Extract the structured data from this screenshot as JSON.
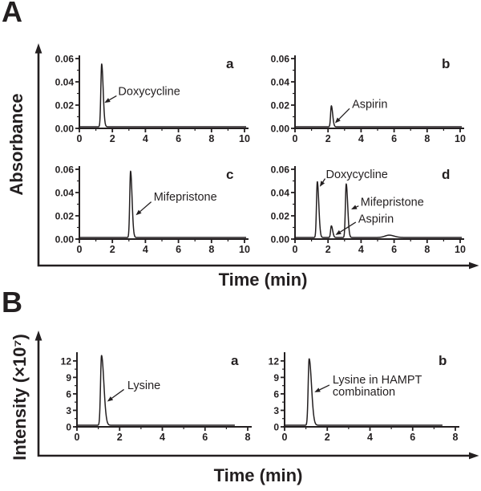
{
  "figure": {
    "ink": "#231f20",
    "background": "#ffffff",
    "panel_a": {
      "label": "A",
      "ylabel": "Absorbance",
      "xlabel": "Time (min)"
    },
    "panel_b": {
      "label": "B",
      "ylabel": "Intensity (×10⁷)",
      "xlabel": "Time (min)"
    }
  },
  "chart_data": [
    {
      "id": "A-a",
      "type": "line",
      "panel": "A",
      "letter": "a",
      "xlim": [
        0,
        10
      ],
      "ylim": [
        0,
        0.06
      ],
      "xtick_values": [
        0,
        2,
        4,
        6,
        8,
        10
      ],
      "xtick_labels": [
        "0",
        "2",
        "4",
        "6",
        "8",
        "10"
      ],
      "xminor": [
        1,
        3,
        5,
        7,
        9
      ],
      "ytick_values": [
        0,
        0.02,
        0.04,
        0.06
      ],
      "ytick_labels": [
        "0.00",
        "0.02",
        "0.04",
        "0.06"
      ],
      "yminor": [
        0.01,
        0.03,
        0.05
      ],
      "trace_end": 10.1,
      "peaks": [
        {
          "name": "Doxycycline",
          "t": 1.35,
          "h": 0.054,
          "sl": 0.05,
          "sr": 0.09
        }
      ],
      "annotations": [
        {
          "lines": [
            "Doxycycline"
          ],
          "tx": 2.35,
          "ty": 0.032,
          "arrow": {
            "x1": 2.25,
            "y1": 0.028,
            "x2": 1.52,
            "y2": 0.022
          }
        }
      ]
    },
    {
      "id": "A-b",
      "type": "line",
      "panel": "A",
      "letter": "b",
      "xlim": [
        0,
        10
      ],
      "ylim": [
        0,
        0.06
      ],
      "xtick_values": [
        0,
        2,
        4,
        6,
        8,
        10
      ],
      "xtick_labels": [
        "0",
        "2",
        "4",
        "6",
        "8",
        "10"
      ],
      "xminor": [
        1,
        3,
        5,
        7,
        9
      ],
      "ytick_values": [
        0,
        0.02,
        0.04,
        0.06
      ],
      "ytick_labels": [
        "0.00",
        "0.02",
        "0.04",
        "0.06"
      ],
      "yminor": [
        0.01,
        0.03,
        0.05
      ],
      "trace_end": 10.1,
      "peaks": [
        {
          "name": "Aspirin",
          "t": 2.2,
          "h": 0.018,
          "sl": 0.045,
          "sr": 0.08
        }
      ],
      "annotations": [
        {
          "lines": [
            "Aspirin"
          ],
          "tx": 3.45,
          "ty": 0.021,
          "arrow": {
            "x1": 3.3,
            "y1": 0.017,
            "x2": 2.42,
            "y2": 0.0045
          }
        }
      ]
    },
    {
      "id": "A-c",
      "type": "line",
      "panel": "A",
      "letter": "c",
      "xlim": [
        0,
        10
      ],
      "ylim": [
        0,
        0.06
      ],
      "xtick_values": [
        0,
        2,
        4,
        6,
        8,
        10
      ],
      "xtick_labels": [
        "0",
        "2",
        "4",
        "6",
        "8",
        "10"
      ],
      "xminor": [
        1,
        3,
        5,
        7,
        9
      ],
      "ytick_values": [
        0,
        0.02,
        0.04,
        0.06
      ],
      "ytick_labels": [
        "0.00",
        "0.02",
        "0.04",
        "0.06"
      ],
      "yminor": [
        0.01,
        0.03,
        0.05
      ],
      "trace_end": 10.1,
      "peaks": [
        {
          "name": "Mifepristone",
          "t": 3.1,
          "h": 0.057,
          "sl": 0.05,
          "sr": 0.09
        }
      ],
      "annotations": [
        {
          "lines": [
            "Mifepristone"
          ],
          "tx": 4.5,
          "ty": 0.0365,
          "arrow": {
            "x1": 4.35,
            "y1": 0.032,
            "x2": 3.42,
            "y2": 0.0205
          }
        }
      ]
    },
    {
      "id": "A-d",
      "type": "line",
      "panel": "A",
      "letter": "d",
      "xlim": [
        0,
        10
      ],
      "ylim": [
        0,
        0.06
      ],
      "xtick_values": [
        0,
        2,
        4,
        6,
        8,
        10
      ],
      "xtick_labels": [
        "0",
        "2",
        "4",
        "6",
        "8",
        "10"
      ],
      "xminor": [
        1,
        3,
        5,
        7,
        9
      ],
      "ytick_values": [
        0,
        0.02,
        0.04,
        0.06
      ],
      "ytick_labels": [
        "0.00",
        "0.02",
        "0.04",
        "0.06"
      ],
      "yminor": [
        0.01,
        0.03,
        0.05
      ],
      "trace_end": 10.1,
      "peaks": [
        {
          "name": "Doxycycline",
          "t": 1.35,
          "h": 0.048,
          "sl": 0.05,
          "sr": 0.09
        },
        {
          "name": "Aspirin",
          "t": 2.2,
          "h": 0.01,
          "sl": 0.045,
          "sr": 0.08
        },
        {
          "name": "Mifepristone",
          "t": 3.1,
          "h": 0.046,
          "sl": 0.05,
          "sr": 0.09
        },
        {
          "name": "minor-unlabeled-bump",
          "t": 5.7,
          "h": 0.002,
          "sl": 0.25,
          "sr": 0.3
        }
      ],
      "annotations": [
        {
          "lines": [
            "Doxycycline"
          ],
          "tx": 1.87,
          "ty": 0.056,
          "arrow": {
            "x1": 1.82,
            "y1": 0.052,
            "x2": 1.5,
            "y2": 0.045
          }
        },
        {
          "lines": [
            "Mifepristone"
          ],
          "tx": 3.97,
          "ty": 0.032,
          "arrow": {
            "x1": 3.85,
            "y1": 0.0285,
            "x2": 3.4,
            "y2": 0.0255
          }
        },
        {
          "lines": [
            "Aspirin"
          ],
          "tx": 3.83,
          "ty": 0.0175,
          "arrow": {
            "x1": 3.68,
            "y1": 0.0145,
            "x2": 2.45,
            "y2": 0.0035
          }
        }
      ]
    },
    {
      "id": "B-a",
      "type": "line",
      "panel": "B",
      "letter": "a",
      "xlim": [
        0,
        8
      ],
      "ylim": [
        0,
        13
      ],
      "xtick_values": [
        0,
        2,
        4,
        6,
        8
      ],
      "xtick_labels": [
        "0",
        "2",
        "4",
        "6",
        "8"
      ],
      "xminor": [
        1,
        3,
        5,
        7
      ],
      "ytick_values": [
        0,
        3,
        6,
        9,
        12
      ],
      "ytick_labels": [
        "0",
        "3",
        "6",
        "9",
        "12"
      ],
      "yminor": [
        1.5,
        4.5,
        7.5,
        10.5
      ],
      "trace_end": 7.4,
      "peaks": [
        {
          "name": "Lysine",
          "t": 1.15,
          "h": 12.7,
          "sl": 0.045,
          "sr": 0.11
        }
      ],
      "annotations": [
        {
          "lines": [
            "Lysine"
          ],
          "tx": 2.36,
          "ty": 7.6,
          "arrow": {
            "x1": 2.2,
            "y1": 6.8,
            "x2": 1.42,
            "y2": 4.6
          }
        }
      ]
    },
    {
      "id": "B-b",
      "type": "line",
      "panel": "B",
      "letter": "b",
      "xlim": [
        0,
        8
      ],
      "ylim": [
        0,
        13
      ],
      "xtick_values": [
        0,
        2,
        4,
        6,
        8
      ],
      "xtick_labels": [
        "0",
        "2",
        "4",
        "6",
        "8"
      ],
      "xminor": [
        1,
        3,
        5,
        7
      ],
      "ytick_values": [
        0,
        3,
        6,
        9,
        12
      ],
      "ytick_labels": [
        "0",
        "3",
        "6",
        "9",
        "12"
      ],
      "yminor": [
        1.5,
        4.5,
        7.5,
        10.5
      ],
      "trace_end": 7.4,
      "peaks": [
        {
          "name": "Lysine",
          "t": 1.15,
          "h": 12.1,
          "sl": 0.045,
          "sr": 0.11
        }
      ],
      "annotations": [
        {
          "lines": [
            "Lysine in HAMPT",
            "combination"
          ],
          "tx": 2.25,
          "ty": 8.6,
          "arrow": {
            "x1": 2.1,
            "y1": 7.6,
            "x2": 1.4,
            "y2": 6.3
          }
        }
      ]
    }
  ]
}
